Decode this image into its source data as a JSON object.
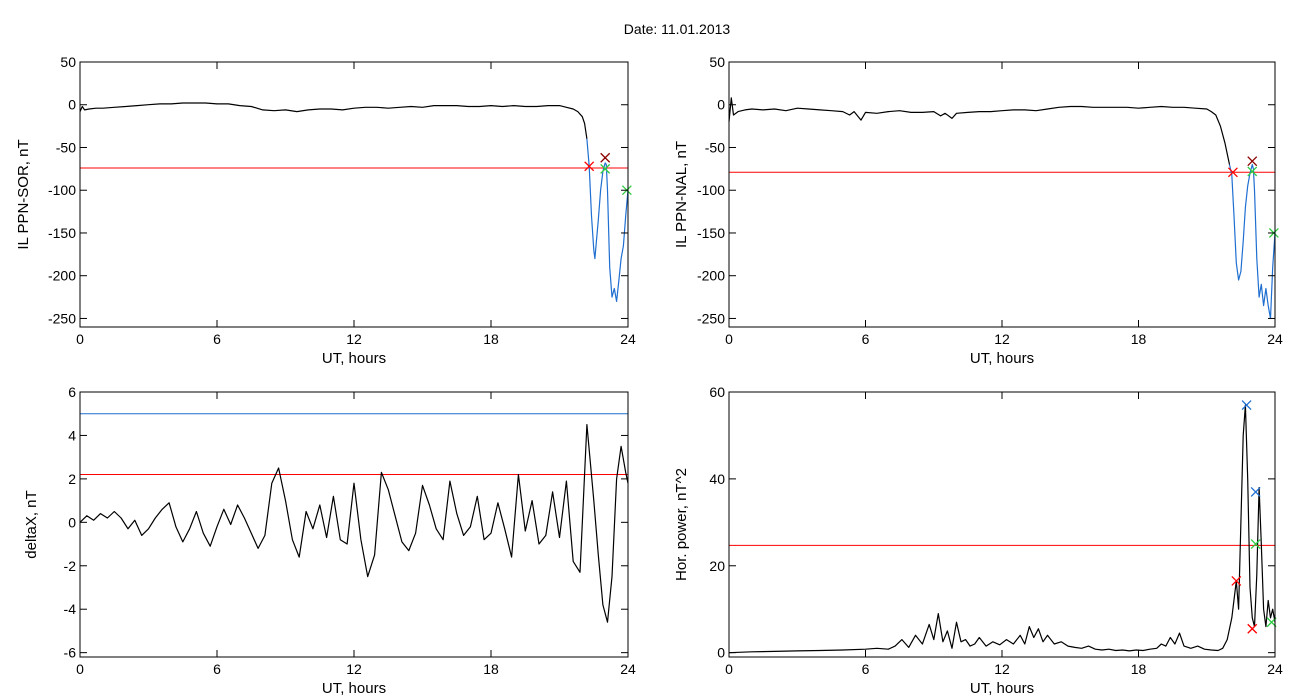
{
  "figure": {
    "title": "Date:  11.01.2013"
  },
  "colors": {
    "trace": "#000000",
    "threshold": "#ff0000",
    "blue": "#1f6fd1",
    "green": "#2ecc40",
    "dark_red": "#8b0000"
  },
  "chart_data": [
    {
      "id": "sor",
      "type": "line",
      "title": "",
      "xlabel": "UT, hours",
      "ylabel": "IL PPN-SOR, nT",
      "xlim": [
        0,
        24
      ],
      "ylim": [
        -260,
        50
      ],
      "xticks": [
        0,
        6,
        12,
        18,
        24
      ],
      "yticks": [
        50,
        0,
        -50,
        -100,
        -150,
        -200,
        -250
      ],
      "grid": false,
      "threshold": {
        "y": -74,
        "color": "#ff0000"
      },
      "series": [
        {
          "color": "#000000",
          "x": [
            0,
            0.1,
            0.2,
            0.4,
            0.7,
            1,
            1.5,
            2,
            2.5,
            3,
            3.5,
            4,
            4.5,
            5,
            5.5,
            6,
            6.5,
            7,
            7.5,
            8,
            8.5,
            9,
            9.5,
            10,
            10.5,
            11,
            11.5,
            12,
            12.5,
            13,
            13.5,
            14,
            14.5,
            15,
            15.5,
            16,
            16.5,
            17,
            17.5,
            18,
            18.5,
            19,
            19.5,
            20,
            20.5,
            21,
            21.3,
            21.6,
            21.8,
            22,
            22.1,
            22.2
          ],
          "y": [
            -8,
            -2,
            -6,
            -5,
            -4,
            -4,
            -3,
            -2,
            -1,
            0,
            1,
            1,
            2,
            2,
            2,
            1,
            1,
            -1,
            -2,
            -6,
            -7,
            -6,
            -8,
            -6,
            -5,
            -5,
            -6,
            -4,
            -3,
            -3,
            -4,
            -3,
            -2,
            -3,
            -1,
            -1,
            -1,
            -2,
            -2,
            -1,
            -2,
            -1,
            -2,
            -2,
            -1,
            -1,
            -3,
            -5,
            -8,
            -14,
            -22,
            -40
          ]
        },
        {
          "color": "#1f6fd1",
          "x": [
            22.2,
            22.3,
            22.4,
            22.5,
            22.55,
            22.6,
            22.7,
            22.8,
            22.9,
            23,
            23.05,
            23.1,
            23.2,
            23.3,
            23.4,
            23.5,
            23.6,
            23.7,
            23.8,
            23.9,
            24
          ],
          "y": [
            -40,
            -72,
            -130,
            -170,
            -180,
            -165,
            -135,
            -100,
            -78,
            -68,
            -70,
            -100,
            -190,
            -225,
            -215,
            -230,
            -205,
            -180,
            -165,
            -130,
            -100
          ]
        }
      ],
      "markers": [
        {
          "x": 22.3,
          "y": -72,
          "color": "#ff0000",
          "symbol": "x"
        },
        {
          "x": 23.0,
          "y": -62,
          "color": "#8b0000",
          "symbol": "x"
        },
        {
          "x": 23.0,
          "y": -75,
          "color": "#2ecc40",
          "symbol": "x"
        },
        {
          "x": 23.95,
          "y": -100,
          "color": "#2ecc40",
          "symbol": "x"
        }
      ]
    },
    {
      "id": "nal",
      "type": "line",
      "title": "",
      "xlabel": "UT, hours",
      "ylabel": "IL PPN-NAL, nT",
      "xlim": [
        0,
        24
      ],
      "ylim": [
        -260,
        50
      ],
      "xticks": [
        0,
        6,
        12,
        18,
        24
      ],
      "yticks": [
        50,
        0,
        -50,
        -100,
        -150,
        -200,
        -250
      ],
      "grid": false,
      "threshold": {
        "y": -79,
        "color": "#ff0000"
      },
      "series": [
        {
          "color": "#000000",
          "x": [
            0,
            0.1,
            0.2,
            0.4,
            0.7,
            1,
            1.5,
            2,
            2.5,
            3,
            3.5,
            4,
            4.5,
            5,
            5.3,
            5.5,
            5.8,
            6,
            6.5,
            7,
            7.5,
            8,
            8.5,
            9,
            9.3,
            9.5,
            9.8,
            10,
            10.5,
            11,
            11.5,
            12,
            12.5,
            13,
            13.5,
            14,
            14.5,
            15,
            15.5,
            16,
            16.5,
            17,
            17.5,
            18,
            18.5,
            19,
            19.5,
            20,
            20.5,
            21,
            21.2,
            21.4,
            21.6,
            21.8,
            22
          ],
          "y": [
            -20,
            8,
            -12,
            -8,
            -6,
            -5,
            -6,
            -5,
            -7,
            -4,
            -5,
            -6,
            -7,
            -8,
            -12,
            -8,
            -18,
            -9,
            -10,
            -8,
            -7,
            -9,
            -9,
            -8,
            -13,
            -10,
            -16,
            -10,
            -9,
            -8,
            -8,
            -7,
            -6,
            -6,
            -7,
            -5,
            -3,
            -2,
            -2,
            -3,
            -3,
            -3,
            -3,
            -4,
            -3,
            -2,
            -3,
            -3,
            -4,
            -5,
            -8,
            -12,
            -25,
            -45,
            -70
          ]
        },
        {
          "color": "#1f6fd1",
          "x": [
            22,
            22.1,
            22.2,
            22.3,
            22.4,
            22.5,
            22.6,
            22.7,
            22.8,
            22.9,
            23,
            23.05,
            23.1,
            23.2,
            23.3,
            23.4,
            23.5,
            23.6,
            23.7,
            23.8,
            23.9,
            24
          ],
          "y": [
            -70,
            -82,
            -130,
            -185,
            -205,
            -195,
            -160,
            -120,
            -95,
            -80,
            -70,
            -75,
            -100,
            -180,
            -225,
            -210,
            -235,
            -215,
            -235,
            -250,
            -190,
            -150
          ]
        }
      ],
      "markers": [
        {
          "x": 22.15,
          "y": -79,
          "color": "#ff0000",
          "symbol": "x"
        },
        {
          "x": 23.0,
          "y": -66,
          "color": "#8b0000",
          "symbol": "x"
        },
        {
          "x": 23.0,
          "y": -78,
          "color": "#2ecc40",
          "symbol": "x"
        },
        {
          "x": 23.95,
          "y": -150,
          "color": "#2ecc40",
          "symbol": "x"
        }
      ]
    },
    {
      "id": "deltax",
      "type": "line",
      "title": "",
      "xlabel": "UT, hours",
      "ylabel": "deltaX, nT",
      "xlim": [
        0,
        24
      ],
      "ylim": [
        -6.2,
        6
      ],
      "xticks": [
        0,
        6,
        12,
        18,
        24
      ],
      "yticks": [
        6,
        4,
        2,
        0,
        -2,
        -4,
        -6
      ],
      "grid": false,
      "thresholds": [
        {
          "y": 5.0,
          "color": "#1f6fd1"
        },
        {
          "y": 2.2,
          "color": "#ff0000"
        }
      ],
      "series": [
        {
          "color": "#000000",
          "x": [
            0,
            0.3,
            0.6,
            0.9,
            1.2,
            1.5,
            1.8,
            2.1,
            2.4,
            2.7,
            3,
            3.3,
            3.6,
            3.9,
            4.2,
            4.5,
            4.8,
            5.1,
            5.4,
            5.7,
            6,
            6.3,
            6.6,
            6.9,
            7.2,
            7.5,
            7.8,
            8.1,
            8.4,
            8.7,
            9,
            9.3,
            9.6,
            9.9,
            10.2,
            10.5,
            10.8,
            11.1,
            11.4,
            11.7,
            12,
            12.3,
            12.6,
            12.9,
            13.2,
            13.5,
            13.8,
            14.1,
            14.4,
            14.7,
            15,
            15.3,
            15.6,
            15.9,
            16.2,
            16.5,
            16.8,
            17.1,
            17.4,
            17.7,
            18,
            18.3,
            18.6,
            18.9,
            19.2,
            19.5,
            19.8,
            20.1,
            20.4,
            20.7,
            21,
            21.3,
            21.6,
            21.9,
            22.2,
            22.5,
            22.7,
            22.9,
            23.1,
            23.3,
            23.5,
            23.7,
            23.9,
            24
          ],
          "y": [
            0,
            0.3,
            0.1,
            0.4,
            0.2,
            0.5,
            0.2,
            -0.3,
            0.1,
            -0.6,
            -0.3,
            0.2,
            0.6,
            0.9,
            -0.2,
            -0.9,
            -0.3,
            0.5,
            -0.5,
            -1.1,
            -0.2,
            0.6,
            -0.1,
            0.8,
            0.2,
            -0.5,
            -1.2,
            -0.6,
            1.8,
            2.5,
            1,
            -0.8,
            -1.6,
            0.5,
            -0.3,
            0.8,
            -0.7,
            1.2,
            -0.8,
            -1,
            1.8,
            -0.8,
            -2.5,
            -1.5,
            2.3,
            1.5,
            0.3,
            -0.9,
            -1.3,
            -0.5,
            1.7,
            0.8,
            -0.3,
            -0.8,
            1.9,
            0.4,
            -0.6,
            -0.2,
            1.2,
            -0.8,
            -0.5,
            0.9,
            -0.3,
            -1.6,
            2.2,
            -0.4,
            1,
            -1,
            -0.6,
            1.4,
            -0.7,
            1.9,
            -1.8,
            -2.3,
            4.5,
            1,
            -1.5,
            -3.8,
            -4.6,
            -2.5,
            2,
            3.5,
            2.3,
            1.8
          ]
        }
      ]
    },
    {
      "id": "power",
      "type": "line",
      "title": "",
      "xlabel": "UT, hours",
      "ylabel": "Hor. power, nT^2",
      "xlim": [
        0,
        24
      ],
      "ylim": [
        -1,
        60
      ],
      "xticks": [
        0,
        6,
        12,
        18,
        24
      ],
      "yticks": [
        60,
        40,
        20,
        0
      ],
      "grid": false,
      "threshold": {
        "y": 24.7,
        "color": "#ff0000"
      },
      "series": [
        {
          "color": "#000000",
          "x": [
            0,
            1,
            2,
            3,
            4,
            5,
            6,
            6.5,
            7,
            7.3,
            7.6,
            7.9,
            8.2,
            8.5,
            8.8,
            9,
            9.2,
            9.4,
            9.6,
            9.8,
            10,
            10.2,
            10.4,
            10.6,
            10.8,
            11,
            11.3,
            11.6,
            11.9,
            12.2,
            12.5,
            12.8,
            13,
            13.2,
            13.4,
            13.6,
            13.8,
            14,
            14.3,
            14.6,
            14.9,
            15.2,
            15.5,
            15.8,
            16.1,
            16.4,
            16.7,
            17,
            17.3,
            17.6,
            17.9,
            18.2,
            18.5,
            18.8,
            19,
            19.2,
            19.4,
            19.6,
            19.8,
            20,
            20.3,
            20.6,
            20.9,
            21.2,
            21.5,
            21.7,
            21.9,
            22.1,
            22.3,
            22.4,
            22.5,
            22.6,
            22.7,
            22.8,
            22.9,
            23,
            23.1,
            23.2,
            23.3,
            23.4,
            23.5,
            23.6,
            23.7,
            23.8,
            23.9,
            24
          ],
          "y": [
            0,
            0.2,
            0.3,
            0.4,
            0.5,
            0.6,
            0.8,
            1,
            0.8,
            1.5,
            3,
            1.2,
            4,
            2,
            6.5,
            3,
            9,
            2.5,
            5,
            1,
            7,
            2.5,
            3,
            1.5,
            2,
            3.5,
            1.5,
            2.5,
            1.8,
            3,
            2,
            4,
            2,
            6,
            3.5,
            5.5,
            2.5,
            4,
            2,
            2.5,
            1.5,
            1.2,
            1,
            1.5,
            0.8,
            0.6,
            0.8,
            0.5,
            0.6,
            0.4,
            0.6,
            0.5,
            0.8,
            1,
            2,
            1.5,
            3.5,
            2,
            4.5,
            1.5,
            1,
            1.5,
            0.8,
            0.6,
            0.5,
            1,
            3,
            8,
            16.5,
            10,
            30,
            50,
            57,
            40,
            15,
            8,
            6,
            18,
            38,
            25,
            10,
            6,
            12,
            8,
            10,
            7
          ]
        }
      ],
      "markers": [
        {
          "x": 22.3,
          "y": 16.5,
          "color": "#ff0000",
          "symbol": "x"
        },
        {
          "x": 22.75,
          "y": 57,
          "color": "#1f6fd1",
          "symbol": "x"
        },
        {
          "x": 23.15,
          "y": 37,
          "color": "#1f6fd1",
          "symbol": "x"
        },
        {
          "x": 23.15,
          "y": 25,
          "color": "#2ecc40",
          "symbol": "x"
        },
        {
          "x": 23.0,
          "y": 5.5,
          "color": "#ff0000",
          "symbol": "x"
        },
        {
          "x": 23.85,
          "y": 7,
          "color": "#2ecc40",
          "symbol": "x"
        }
      ]
    }
  ]
}
